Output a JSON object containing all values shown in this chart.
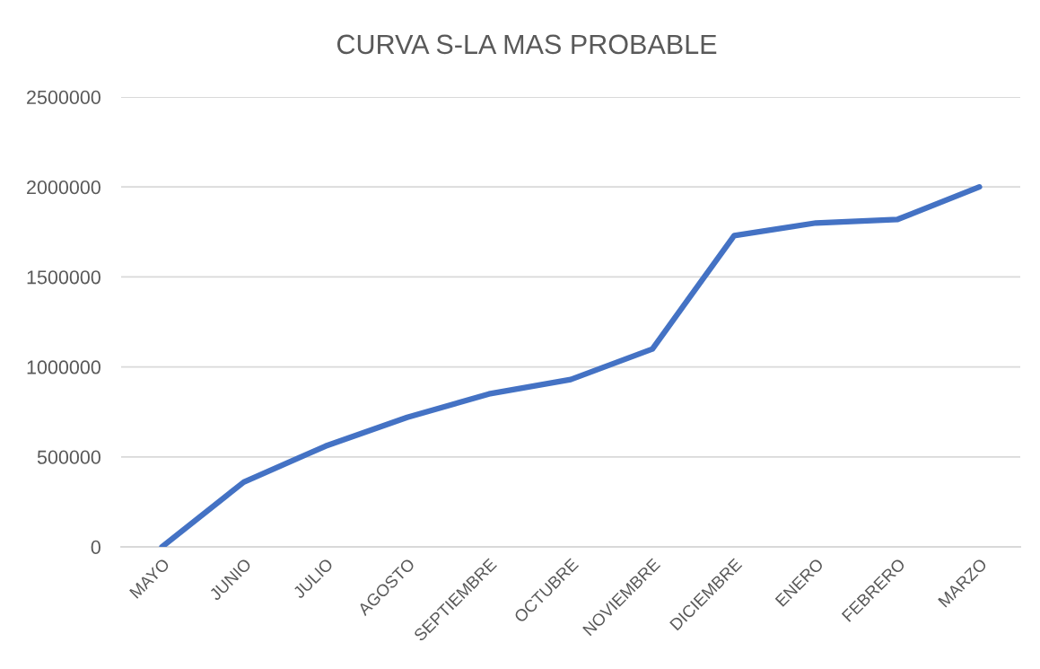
{
  "chart_data": {
    "type": "line",
    "title": "CURVA S-LA MAS PROBABLE",
    "categories": [
      "MAYO",
      "JUNIO",
      "JULIO",
      "AGOSTO",
      "SEPTIEMBRE",
      "OCTUBRE",
      "NOVIEMBRE",
      "DICIEMBRE",
      "ENERO",
      "FEBRERO",
      "MARZO"
    ],
    "series": [
      {
        "color": "#4472c4",
        "values": [
          0,
          360000,
          560000,
          720000,
          850000,
          930000,
          1100000,
          1730000,
          1800000,
          1820000,
          2000000
        ]
      }
    ],
    "ylim": [
      0,
      2500000
    ],
    "yticks": [
      0,
      500000,
      1000000,
      1500000,
      2000000,
      2500000
    ],
    "grid": "y",
    "marker": "none",
    "line_style": "solid"
  }
}
